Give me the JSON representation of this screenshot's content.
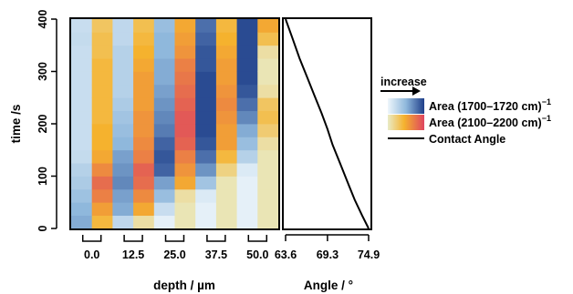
{
  "chart_data": [
    {
      "type": "heatmap",
      "xlabel": "depth / µm",
      "ylabel": "time /s",
      "x_tick_labels": [
        "0.0",
        "12.5",
        "25.0",
        "37.5",
        "50.0"
      ],
      "y_tick_labels": [
        "0",
        "100",
        "200",
        "300",
        "400"
      ],
      "ylim": [
        0,
        400
      ],
      "n_depth_positions": 5,
      "channels_per_depth": [
        "Area (1700–1720 cm)⁻¹",
        "Area (2100–2200 cm)⁻¹"
      ],
      "time_bins": [
        0,
        25,
        50,
        75,
        100,
        125,
        150,
        175,
        200,
        225,
        250,
        275,
        300,
        325,
        350,
        375,
        400
      ],
      "columns": [
        {
          "depth": "0.0",
          "channel": "blue",
          "levels": [
            0.55,
            0.5,
            0.42,
            0.35,
            0.3,
            0.22,
            0.2,
            0.2,
            0.2,
            0.2,
            0.2,
            0.2,
            0.2,
            0.2,
            0.22,
            0.2
          ]
        },
        {
          "depth": "0.0",
          "channel": "yellow",
          "levels": [
            0.4,
            0.55,
            0.7,
            0.8,
            0.65,
            0.5,
            0.45,
            0.45,
            0.4,
            0.4,
            0.4,
            0.4,
            0.4,
            0.35,
            0.35,
            0.3
          ]
        },
        {
          "depth": "12.5",
          "channel": "blue",
          "levels": [
            0.25,
            0.55,
            0.6,
            0.7,
            0.65,
            0.6,
            0.5,
            0.45,
            0.4,
            0.35,
            0.3,
            0.3,
            0.3,
            0.3,
            0.25,
            0.25
          ]
        },
        {
          "depth": "12.5",
          "channel": "yellow",
          "levels": [
            0.1,
            0.5,
            0.65,
            0.8,
            0.85,
            0.7,
            0.65,
            0.6,
            0.6,
            0.55,
            0.55,
            0.55,
            0.5,
            0.45,
            0.4,
            0.35
          ]
        },
        {
          "depth": "25.0",
          "channel": "blue",
          "levels": [
            0.05,
            0.2,
            0.45,
            0.6,
            0.85,
            0.9,
            0.85,
            0.75,
            0.7,
            0.65,
            0.6,
            0.55,
            0.55,
            0.5,
            0.5,
            0.45
          ]
        },
        {
          "depth": "25.0",
          "channel": "yellow",
          "levels": [
            0.05,
            0.05,
            0.1,
            0.5,
            0.6,
            0.7,
            0.85,
            0.9,
            0.9,
            0.85,
            0.8,
            0.75,
            0.7,
            0.6,
            0.55,
            0.5
          ]
        },
        {
          "depth": "37.5",
          "channel": "blue",
          "levels": [
            0.05,
            0.05,
            0.1,
            0.4,
            0.65,
            0.8,
            0.9,
            0.95,
            0.95,
            0.95,
            0.95,
            0.95,
            0.9,
            0.9,
            0.85,
            0.8
          ]
        },
        {
          "depth": "37.5",
          "channel": "yellow",
          "levels": [
            0.05,
            0.05,
            0.05,
            0.05,
            0.2,
            0.4,
            0.55,
            0.55,
            0.6,
            0.65,
            0.6,
            0.55,
            0.55,
            0.5,
            0.45,
            0.4
          ]
        },
        {
          "depth": "50.0",
          "channel": "blue",
          "levels": [
            0.05,
            0.05,
            0.05,
            0.05,
            0.1,
            0.3,
            0.45,
            0.55,
            0.7,
            0.8,
            0.9,
            0.95,
            0.95,
            0.95,
            0.95,
            0.95
          ]
        },
        {
          "depth": "50.0",
          "channel": "yellow",
          "levels": [
            0.05,
            0.05,
            0.05,
            0.05,
            0.05,
            0.05,
            0.1,
            0.25,
            0.35,
            0.3,
            0.1,
            0.05,
            0.05,
            0.1,
            0.35,
            0.5
          ]
        }
      ]
    },
    {
      "type": "line",
      "xlabel": "Angle / °",
      "x_tick_labels": [
        "63.6",
        "69.3",
        "74.9"
      ],
      "xlim": [
        63.6,
        74.9
      ],
      "ylim": [
        0,
        400
      ],
      "series": [
        {
          "name": "Contact Angle",
          "x": [
            74.9,
            74.0,
            73.0,
            72.0,
            71.0,
            70.0,
            69.3,
            68.5,
            67.5,
            66.5,
            65.5,
            64.5,
            63.6
          ],
          "y": [
            0,
            25,
            55,
            90,
            125,
            160,
            190,
            220,
            255,
            290,
            325,
            365,
            400
          ]
        }
      ]
    }
  ],
  "legend": {
    "increase_label": "increase",
    "entries": [
      {
        "label": "Area (1700–1720 cm)",
        "superscript": "−1",
        "kind": "gradient-blue"
      },
      {
        "label": "Area (2100–2200 cm)",
        "superscript": "−1",
        "kind": "gradient-warm"
      },
      {
        "label": "Contact Angle",
        "kind": "line"
      }
    ]
  },
  "colors": {
    "blue_low": "#eef6fb",
    "blue_high": "#1f3f8a",
    "warm_low": "#e9ebc6",
    "warm_mid": "#f5b22e",
    "warm_high": "#de4560",
    "line": "#000000"
  }
}
